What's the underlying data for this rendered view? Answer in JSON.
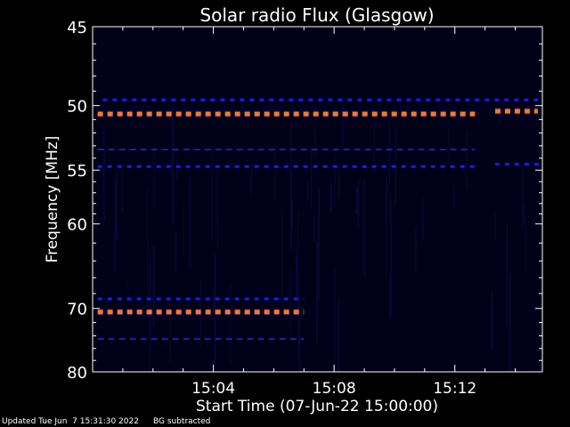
{
  "chart_data": {
    "type": "heatmap",
    "title": "Solar radio Flux (Glasgow)",
    "xlabel": "Start Time (07-Jun-22 15:00:00)",
    "ylabel": "Frequency [MHz]",
    "xlim_minutes": [
      15.0,
      15.2483
    ],
    "x_range_clock": [
      "15:00:00",
      "15:14:54"
    ],
    "x_ticks": [
      "15:04",
      "15:08",
      "15:12"
    ],
    "ylim": [
      45,
      80
    ],
    "y_ticks": [
      45,
      50,
      55,
      60,
      70,
      80
    ],
    "y_scale": "non-linear (reciprocal)",
    "colormap": {
      "background": "#000018",
      "low": "#1a1aff",
      "high": "#ff7a1a"
    },
    "features": [
      {
        "type": "strong",
        "freq_mhz": 50.6,
        "start": "15:00:10",
        "end": "15:12:40"
      },
      {
        "type": "strong",
        "freq_mhz": 50.4,
        "start": "15:13:20",
        "end": "15:14:45"
      },
      {
        "type": "moderate",
        "freq_mhz": 49.6,
        "start": "15:00:20",
        "end": "15:14:50"
      },
      {
        "type": "weak",
        "freq_mhz": 53.3,
        "start": "15:00:10",
        "end": "15:12:40"
      },
      {
        "type": "moderate",
        "freq_mhz": 54.7,
        "start": "15:00:10",
        "end": "15:12:40"
      },
      {
        "type": "moderate",
        "freq_mhz": 54.5,
        "start": "15:13:20",
        "end": "15:14:50"
      },
      {
        "type": "moderate",
        "freq_mhz": 68.7,
        "start": "15:00:10",
        "end": "15:07:00"
      },
      {
        "type": "strong",
        "freq_mhz": 70.5,
        "start": "15:00:10",
        "end": "15:07:00"
      },
      {
        "type": "weak",
        "freq_mhz": 74.5,
        "start": "15:00:10",
        "end": "15:07:00"
      }
    ]
  },
  "footer": {
    "updated": "Updated Tue Jun  7 15:31:30 2022",
    "note": "BG subtracted"
  }
}
